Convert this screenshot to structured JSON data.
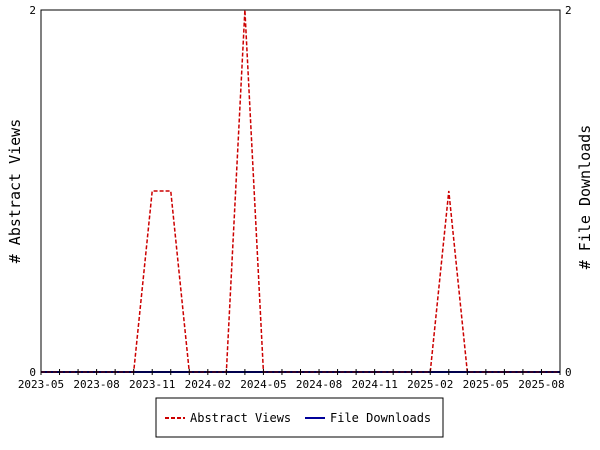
{
  "chart_data": {
    "type": "line",
    "x": [
      "2023-05",
      "2023-06",
      "2023-07",
      "2023-08",
      "2023-09",
      "2023-10",
      "2023-11",
      "2023-12",
      "2024-01",
      "2024-02",
      "2024-03",
      "2024-04",
      "2024-05",
      "2024-06",
      "2024-07",
      "2024-08",
      "2024-09",
      "2024-10",
      "2024-11",
      "2024-12",
      "2025-01",
      "2025-02",
      "2025-03",
      "2025-04",
      "2025-05",
      "2025-06",
      "2025-07",
      "2025-08",
      "2025-09"
    ],
    "x_tick_labels": [
      "2023-05",
      "2023-08",
      "2023-11",
      "2024-02",
      "2024-05",
      "2024-08",
      "2024-11",
      "2025-02",
      "2025-05",
      "2025-08"
    ],
    "series": [
      {
        "name": "Abstract Views",
        "axis": "left",
        "color": "#cc0000",
        "dashed": true,
        "values": [
          0,
          0,
          0,
          0,
          0,
          0,
          1,
          1,
          0,
          0,
          0,
          2,
          0,
          0,
          0,
          0,
          0,
          0,
          0,
          0,
          0,
          0,
          1,
          0,
          0,
          0,
          0,
          0,
          0
        ]
      },
      {
        "name": "File Downloads",
        "axis": "right",
        "color": "#000099",
        "dashed": false,
        "values": [
          0,
          0,
          0,
          0,
          0,
          0,
          0,
          0,
          0,
          0,
          0,
          0,
          0,
          0,
          0,
          0,
          0,
          0,
          0,
          0,
          0,
          0,
          0,
          0,
          0,
          0,
          0,
          0,
          0
        ]
      }
    ],
    "ylabel_left": "# Abstract Views",
    "ylabel_right": "# File Downloads",
    "ylim_left": [
      0,
      2
    ],
    "ylim_right": [
      0,
      2
    ],
    "y_tick_labels_left": [
      "0",
      "2"
    ],
    "y_tick_labels_right": [
      "0",
      "2"
    ],
    "grid": false,
    "legend_position": "bottom-center"
  }
}
